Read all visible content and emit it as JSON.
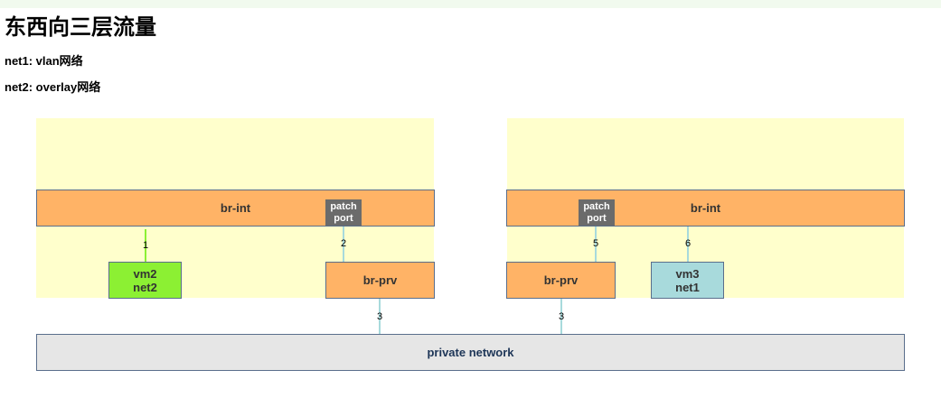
{
  "page": {
    "title": "东西向三层流量",
    "net1": "net1: vlan网络",
    "net2": "net2: overlay网络"
  },
  "diagram": {
    "left_host": {
      "bridge_int": "br-int",
      "patch_port": "patch\nport",
      "bridge_prv": "br-prv",
      "vm": "vm2\nnet2"
    },
    "right_host": {
      "bridge_int": "br-int",
      "patch_port": "patch\nport",
      "bridge_prv": "br-prv",
      "vm": "vm3\nnet1"
    },
    "network": "private network",
    "links": {
      "l1": "1",
      "l2": "2",
      "l3a": "3",
      "l3b": "3",
      "l5": "5",
      "l6": "6"
    },
    "colors": {
      "host_bg": "#ffffcc",
      "bridge": "#ffb366",
      "vm_net2": "#8cf033",
      "vm_net1": "#a8dadc",
      "patch": "#6b6b6b",
      "network": "#e6e6e6",
      "link_green": "#8cf033",
      "link_blue": "#a8dadc"
    }
  }
}
